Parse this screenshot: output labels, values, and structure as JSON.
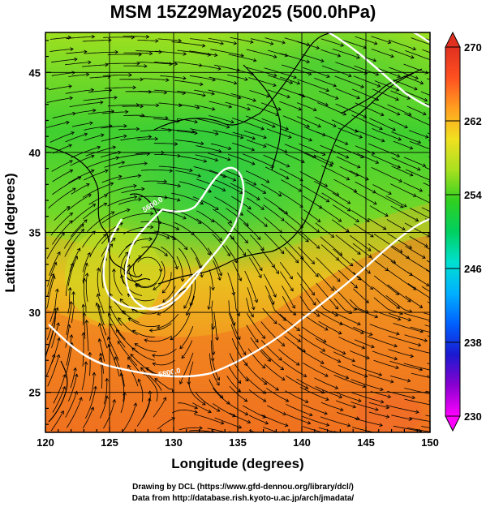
{
  "title": "MSM 15Z29May2025 (500.0hPa)",
  "credits": {
    "line1": "Drawing by DCL (https://www.gfd-dennou.org/library/dcl/)",
    "line2": "Data from http://database.rish.kyoto-u.ac.jp/arch/jmadata/"
  },
  "map": {
    "type": "temperature-streamline-map",
    "lon_range": [
      120,
      150
    ],
    "lat_range": [
      22.5,
      47.5
    ],
    "grid": true,
    "xlabel": "Longitude (degrees)",
    "ylabel": "Latitude  (degrees)",
    "xticks": [
      "120",
      "125",
      "130",
      "135",
      "140",
      "145",
      "150"
    ],
    "yticks": [
      "25",
      "30",
      "35",
      "40",
      "45"
    ],
    "xtick_values": [
      120,
      125,
      130,
      135,
      140,
      145,
      150
    ],
    "ytick_values": [
      25,
      30,
      35,
      40,
      45
    ],
    "contours": [
      {
        "label": "5600.0",
        "value": 5600
      },
      {
        "label": "5800.0",
        "value": 5800
      },
      {
        "label": "5700.0",
        "value": 5700
      }
    ]
  },
  "colorbar": {
    "min": 230,
    "max": 270,
    "labels": [
      "270",
      "262",
      "254",
      "246",
      "238",
      "230"
    ],
    "label_values": [
      270,
      262,
      254,
      246,
      238,
      230
    ],
    "colors": [
      "#ff00ff",
      "#8a00d0",
      "#1a1ad0",
      "#0060ff",
      "#00b0ff",
      "#00e0d0",
      "#00d060",
      "#30d020",
      "#a8e020",
      "#f0e020",
      "#ffa020",
      "#ff5020",
      "#e03020"
    ],
    "extend": "both"
  }
}
